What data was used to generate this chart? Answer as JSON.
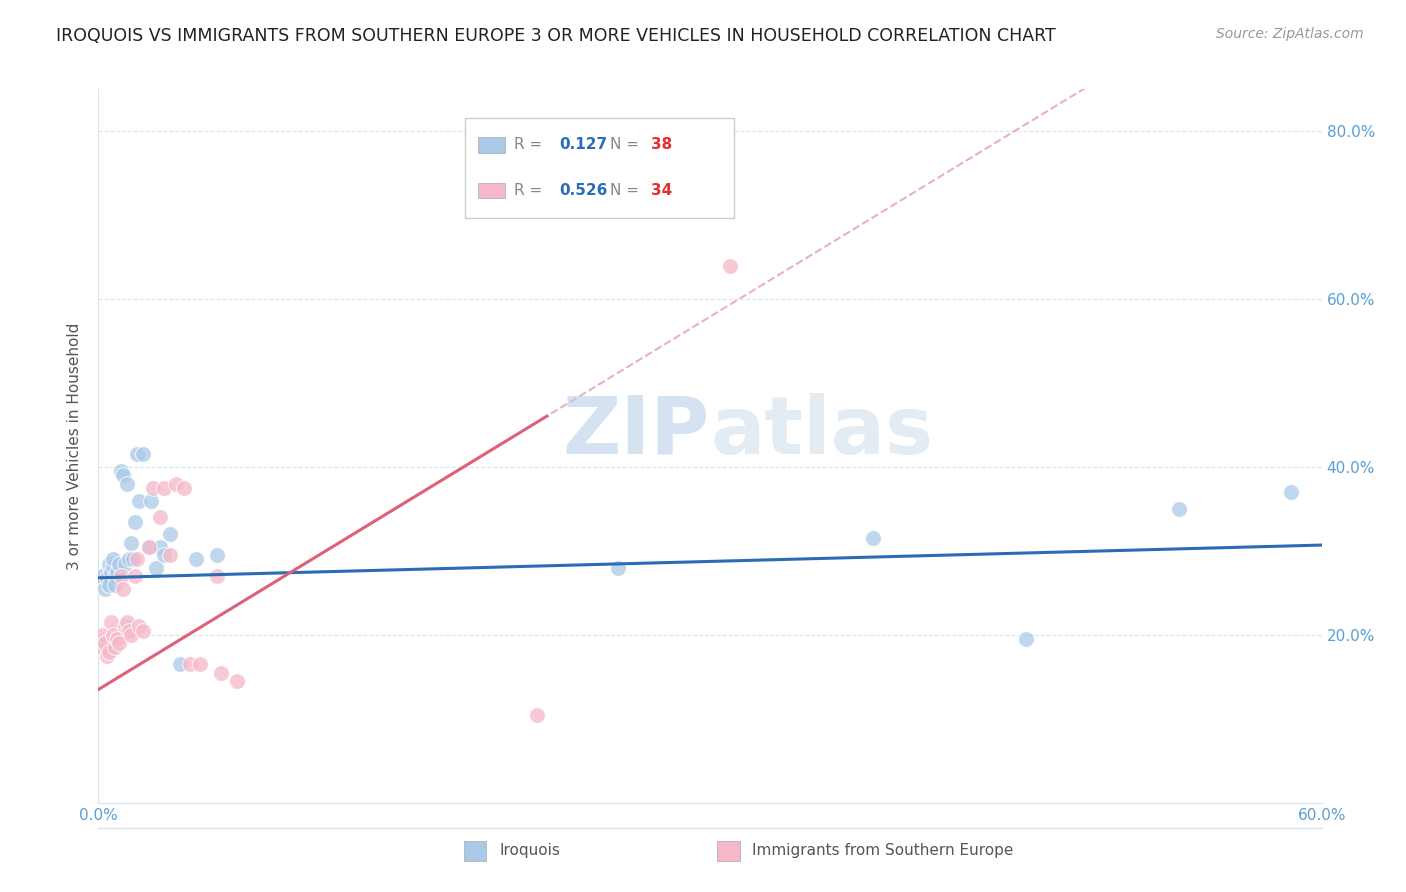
{
  "title": "IROQUOIS VS IMMIGRANTS FROM SOUTHERN EUROPE 3 OR MORE VEHICLES IN HOUSEHOLD CORRELATION CHART",
  "source": "Source: ZipAtlas.com",
  "ylabel": "3 or more Vehicles in Household",
  "xlim": [
    0.0,
    0.6
  ],
  "ylim": [
    0.0,
    0.85
  ],
  "yticks_right": [
    0.2,
    0.4,
    0.6,
    0.8
  ],
  "ytick_labels_right": [
    "20.0%",
    "40.0%",
    "60.0%",
    "80.0%"
  ],
  "xticks": [
    0.0,
    0.1,
    0.2,
    0.3,
    0.4,
    0.5,
    0.6
  ],
  "xtick_labels": [
    "0.0%",
    "",
    "",
    "",
    "",
    "",
    "60.0%"
  ],
  "blue_color": "#aac9e8",
  "pink_color": "#f5b8c8",
  "blue_line_color": "#2a6db5",
  "pink_line_color": "#e0607a",
  "pink_dashed_color": "#e8b0c0",
  "watermark": "ZIPatlas",
  "watermark_color": "#d0dff0",
  "legend_r1_val": "0.127",
  "legend_n1_val": "38",
  "legend_r2_val": "0.526",
  "legend_n2_val": "34",
  "blue_trend_slope": 0.065,
  "blue_trend_intercept": 0.268,
  "pink_trend_slope": 1.48,
  "pink_trend_intercept": 0.135,
  "iroquois_x": [
    0.001,
    0.002,
    0.003,
    0.004,
    0.005,
    0.005,
    0.006,
    0.007,
    0.007,
    0.008,
    0.008,
    0.009,
    0.01,
    0.011,
    0.012,
    0.013,
    0.014,
    0.015,
    0.016,
    0.017,
    0.018,
    0.019,
    0.02,
    0.022,
    0.025,
    0.026,
    0.028,
    0.03,
    0.032,
    0.035,
    0.04,
    0.048,
    0.058,
    0.255,
    0.38,
    0.455,
    0.53,
    0.585
  ],
  "iroquois_y": [
    0.265,
    0.27,
    0.255,
    0.268,
    0.285,
    0.26,
    0.275,
    0.282,
    0.29,
    0.27,
    0.26,
    0.275,
    0.285,
    0.395,
    0.39,
    0.285,
    0.38,
    0.29,
    0.31,
    0.29,
    0.335,
    0.415,
    0.36,
    0.415,
    0.305,
    0.36,
    0.28,
    0.305,
    0.295,
    0.32,
    0.165,
    0.29,
    0.295,
    0.28,
    0.315,
    0.195,
    0.35,
    0.37
  ],
  "immig_x": [
    0.001,
    0.002,
    0.003,
    0.004,
    0.005,
    0.006,
    0.007,
    0.008,
    0.009,
    0.01,
    0.011,
    0.012,
    0.013,
    0.014,
    0.015,
    0.016,
    0.018,
    0.019,
    0.02,
    0.022,
    0.025,
    0.027,
    0.03,
    0.032,
    0.035,
    0.038,
    0.042,
    0.045,
    0.05,
    0.058,
    0.06,
    0.068,
    0.215,
    0.31
  ],
  "immig_y": [
    0.185,
    0.2,
    0.19,
    0.175,
    0.18,
    0.215,
    0.2,
    0.185,
    0.195,
    0.19,
    0.27,
    0.255,
    0.21,
    0.215,
    0.205,
    0.2,
    0.27,
    0.29,
    0.21,
    0.205,
    0.305,
    0.375,
    0.34,
    0.375,
    0.295,
    0.38,
    0.375,
    0.165,
    0.165,
    0.27,
    0.155,
    0.145,
    0.105,
    0.64
  ]
}
